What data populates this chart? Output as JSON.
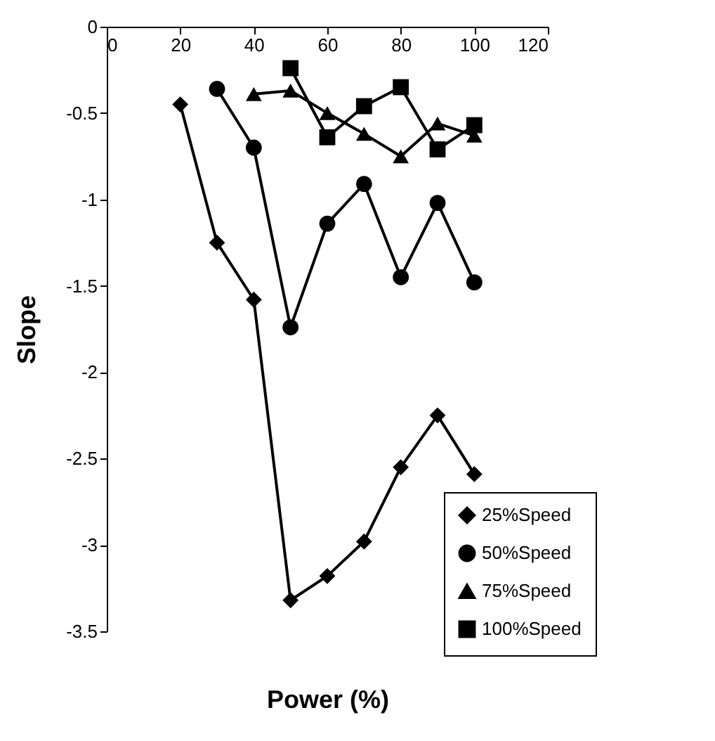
{
  "chart_data": {
    "type": "line",
    "xlabel": "Power (%)",
    "ylabel": "Slope",
    "xlim": [
      0,
      120
    ],
    "xticks": [
      0,
      20,
      40,
      60,
      80,
      100,
      120
    ],
    "ylim": [
      -3.5,
      0
    ],
    "yticks": [
      0,
      -0.5,
      -1,
      -1.5,
      -2,
      -2.5,
      -3,
      -3.5
    ],
    "grid": false,
    "legend": "bottom right",
    "line_style": "solid",
    "series": [
      {
        "name": "25%Speed",
        "color": "#000000",
        "marker": "diamond",
        "x": [
          20,
          30,
          40,
          50,
          60,
          70,
          80,
          90,
          100
        ],
        "values": [
          -0.45,
          -1.25,
          -1.58,
          -3.32,
          -3.18,
          -2.98,
          -2.55,
          -2.25,
          -2.59
        ]
      },
      {
        "name": "50%Speed",
        "color": "#000000",
        "marker": "circle",
        "x": [
          30,
          40,
          50,
          60,
          70,
          80,
          90,
          100
        ],
        "values": [
          -0.36,
          -0.7,
          -1.74,
          -1.14,
          -0.91,
          -1.45,
          -1.02,
          -1.48
        ]
      },
      {
        "name": "75%Speed",
        "color": "#000000",
        "marker": "triangle",
        "x": [
          40,
          50,
          60,
          70,
          80,
          90,
          100
        ],
        "values": [
          -0.39,
          -0.37,
          -0.5,
          -0.62,
          -0.75,
          -0.56,
          -0.63
        ]
      },
      {
        "name": "100%Speed",
        "color": "#000000",
        "marker": "square",
        "x": [
          50,
          60,
          70,
          80,
          90,
          100
        ],
        "values": [
          -0.24,
          -0.64,
          -0.46,
          -0.35,
          -0.71,
          -0.57
        ]
      }
    ]
  }
}
